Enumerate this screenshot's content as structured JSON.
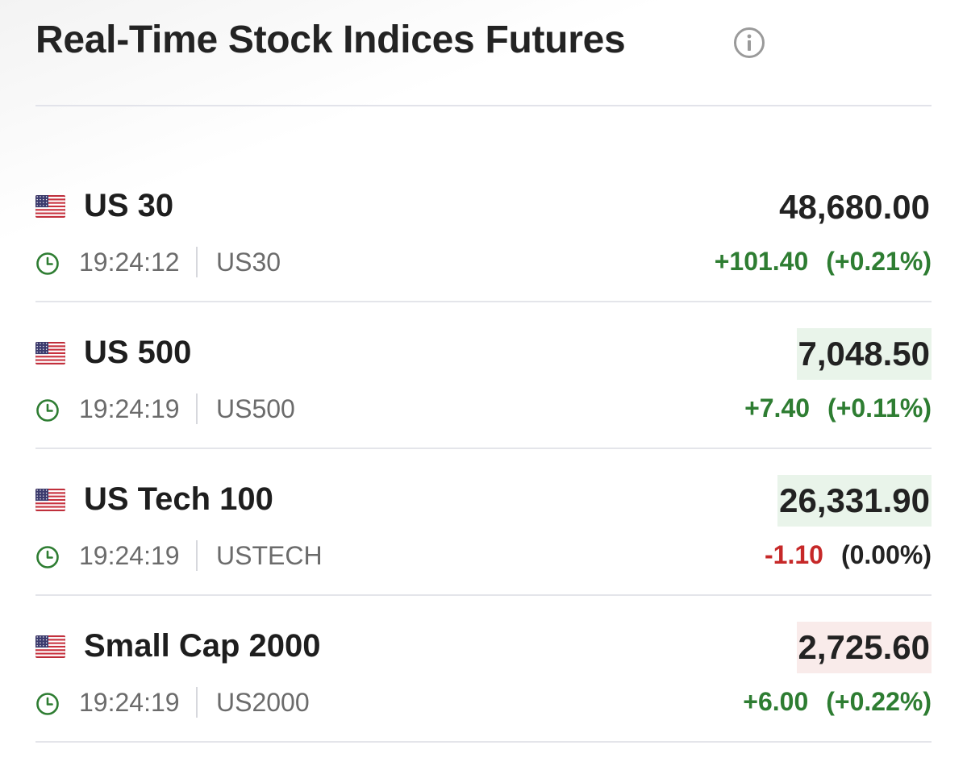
{
  "header": {
    "title": "Real-Time Stock Indices Futures"
  },
  "colors": {
    "positive": "#2e7d32",
    "negative": "#c62828",
    "neutral": "#222222",
    "price_highlight_up": "#e9f4ea",
    "price_highlight_down": "#f9ebea"
  },
  "rows": [
    {
      "flag_icon": "us-flag-icon",
      "name": "US 30",
      "price": "48,680.00",
      "price_highlight": "none",
      "time": "19:24:12",
      "symbol": "US30",
      "change": "+101.40",
      "change_pct": "(+0.21%)",
      "change_direction": "up",
      "pct_direction": "up"
    },
    {
      "flag_icon": "us-flag-icon",
      "name": "US 500",
      "price": "7,048.50",
      "price_highlight": "up",
      "time": "19:24:19",
      "symbol": "US500",
      "change": "+7.40",
      "change_pct": "(+0.11%)",
      "change_direction": "up",
      "pct_direction": "up"
    },
    {
      "flag_icon": "us-flag-icon",
      "name": "US Tech 100",
      "price": "26,331.90",
      "price_highlight": "up",
      "time": "19:24:19",
      "symbol": "USTECH",
      "change": "-1.10",
      "change_pct": "(0.00%)",
      "change_direction": "down",
      "pct_direction": "neutral"
    },
    {
      "flag_icon": "us-flag-icon",
      "name": "Small Cap 2000",
      "price": "2,725.60",
      "price_highlight": "down",
      "time": "19:24:19",
      "symbol": "US2000",
      "change": "+6.00",
      "change_pct": "(+0.22%)",
      "change_direction": "up",
      "pct_direction": "up"
    }
  ]
}
